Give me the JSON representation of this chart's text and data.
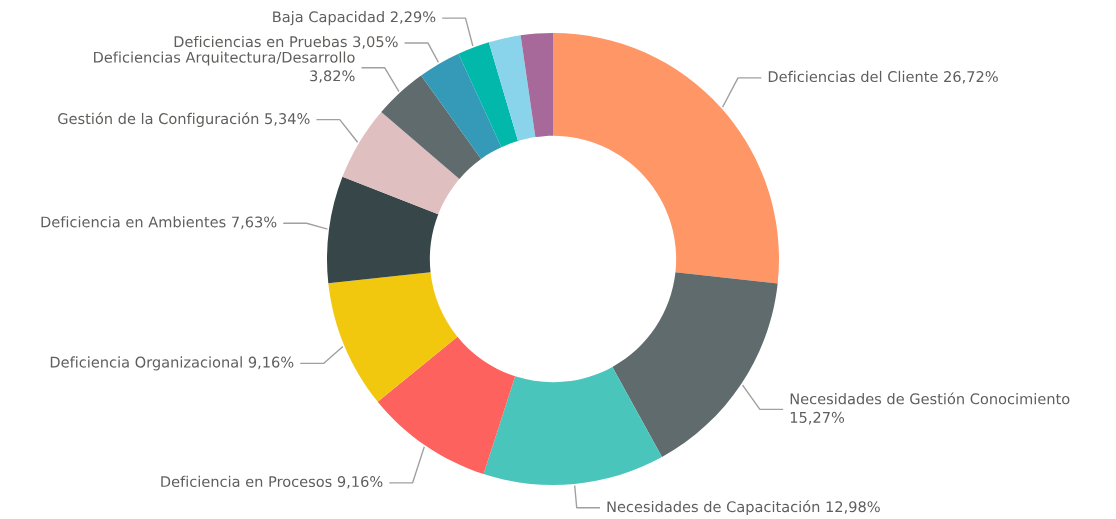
{
  "chart_data": {
    "type": "donut",
    "categories": [
      "Deficiencias del Cliente",
      "Necesidades de Gestión Conocimiento",
      "Necesidades de Capacitación",
      "Deficiencia en Procesos",
      "Deficiencia Organizacional",
      "Deficiencia en Ambientes",
      "Gestión de la Configuración",
      "Deficiencias Arquitectura/Desarrollo",
      "Deficiencias en Pruebas",
      "Baja Capacidad",
      null,
      null
    ],
    "values": [
      26.72,
      15.27,
      12.98,
      9.16,
      9.16,
      7.63,
      5.34,
      3.82,
      3.05,
      2.29,
      2.29,
      2.29
    ],
    "value_labels": [
      "26,72%",
      "15,27%",
      "12,98%",
      "9,16%",
      "9,16%",
      "7,63%",
      "5,34%",
      "3,82%",
      "3,05%",
      "2,29%",
      null,
      null
    ],
    "colors": [
      "#fe9666",
      "#5f6b6d",
      "#4ac5bb",
      "#fd625e",
      "#f2c80f",
      "#374649",
      "#dfbfbf",
      "#5f6b6d",
      "#3599b8",
      "#01b8aa",
      "#8ad4eb",
      "#a66999"
    ],
    "legend": false
  }
}
